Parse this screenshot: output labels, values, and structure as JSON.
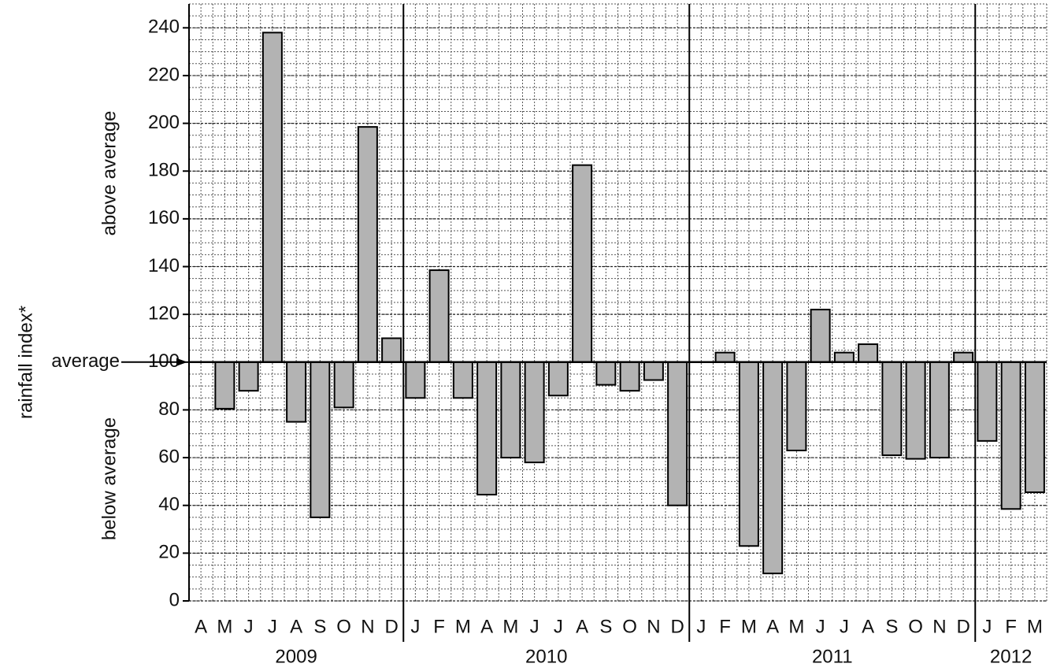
{
  "chart_data": {
    "type": "bar",
    "y_label": "rainfall index*",
    "upper_label": "above average",
    "lower_label": "below average",
    "baseline_label": "average",
    "baseline": 100,
    "color": "#b3b3b3",
    "ylim": [
      0,
      250
    ],
    "yticks": [
      0,
      20,
      40,
      60,
      80,
      100,
      120,
      140,
      160,
      180,
      200,
      220,
      240
    ],
    "minor_grid_step": 5,
    "grid": true,
    "groups": [
      {
        "label": "2009",
        "categories": [
          "A",
          "M",
          "J",
          "J",
          "A",
          "S",
          "O",
          "N",
          "D"
        ],
        "values": [
          null,
          80.5,
          88,
          238,
          75,
          35,
          81,
          198.5,
          110
        ]
      },
      {
        "label": "2010",
        "categories": [
          "J",
          "F",
          "M",
          "A",
          "M",
          "J",
          "J",
          "A",
          "S",
          "O",
          "N",
          "D"
        ],
        "values": [
          85,
          138.5,
          85,
          44.5,
          60,
          58,
          86,
          182.5,
          90.5,
          88,
          92.5,
          40
        ]
      },
      {
        "label": "2011",
        "categories": [
          "J",
          "F",
          "M",
          "A",
          "M",
          "J",
          "J",
          "A",
          "S",
          "O",
          "N",
          "D"
        ],
        "values": [
          null,
          104,
          23,
          11.5,
          63,
          122,
          104,
          107.5,
          61,
          59.5,
          60,
          104
        ]
      },
      {
        "label": "2012",
        "categories": [
          "J",
          "F",
          "M"
        ],
        "values": [
          67,
          38.5,
          45.5
        ]
      }
    ]
  }
}
